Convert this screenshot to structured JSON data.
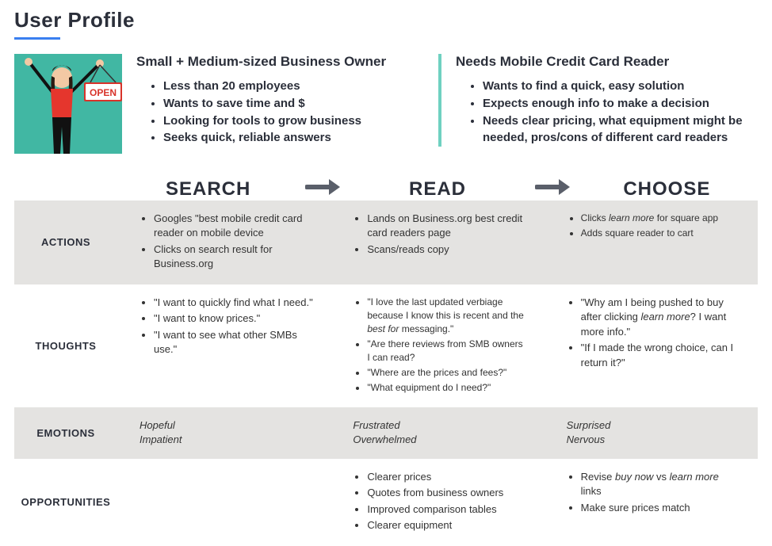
{
  "title": "User Profile",
  "colors": {
    "accent_blue": "#3a7ff0",
    "teal_bg": "#41b7a3",
    "teal_line": "#6fd1c1",
    "band_odd": "#e4e3e1",
    "band_even": "#ffffff",
    "text_dark": "#2b2f3a",
    "arrow": "#5a5f6a"
  },
  "profile": {
    "left": {
      "heading": "Small + Medium-sized Business Owner",
      "items": [
        "Less than 20 employees",
        "Wants to save time and $",
        "Looking for tools to grow business",
        "Seeks quick, reliable answers"
      ]
    },
    "right": {
      "heading": "Needs Mobile Credit Card Reader",
      "items": [
        "Wants to find a quick, easy solution",
        "Expects enough info to make a decision",
        "Needs clear pricing, what equipment might be needed, pros/cons of different card readers"
      ]
    },
    "illustration": {
      "sign_text": "OPEN",
      "sign_color": "#d8332a",
      "shirt_color": "#e5362d",
      "pants_color": "#111111",
      "skin_color": "#f3c9a4",
      "hair_color": "#2a1b12"
    }
  },
  "stages": {
    "search": "SEARCH",
    "read": "READ",
    "choose": "CHOOSE"
  },
  "rows": {
    "actions": {
      "label": "ACTIONS",
      "search": [
        "Googles \"best mobile credit card reader on mobile device",
        "Clicks on search result for Business.org"
      ],
      "read": [
        "Lands on Business.org best credit card readers page",
        "Scans/reads copy"
      ],
      "choose": [
        "Clicks <i>learn more</i> for square app",
        "Adds square reader to cart"
      ]
    },
    "thoughts": {
      "label": "THOUGHTS",
      "search": [
        "\"I want to quickly find what I need.\"",
        "\"I want to know prices.\"",
        "\"I want to see what other SMBs use.\""
      ],
      "read": [
        "\"I love the last updated verbiage because I know this is recent and the <i>best for</i> messaging.\"",
        "\"Are there reviews from SMB owners I can read?",
        "\"Where are the prices and fees?\"",
        "\"What equipment do I need?\""
      ],
      "choose": [
        "\"Why am I being pushed to buy after clicking <i>learn more</i>? I want more info.\"",
        "\"If I made the wrong choice, can I return it?\""
      ]
    },
    "emotions": {
      "label": "EMOTIONS",
      "search": [
        "Hopeful",
        "Impatient"
      ],
      "read": [
        "Frustrated",
        "Overwhelmed"
      ],
      "choose": [
        "Surprised",
        "Nervous"
      ]
    },
    "opportunities": {
      "label": "OPPORTUNITIES",
      "search": [],
      "read": [
        "Clearer prices",
        "Quotes from business owners",
        "Improved comparison tables",
        "Clearer equipment"
      ],
      "choose": [
        "Revise <i>buy now</i> vs <i>learn more</i> links",
        "Make sure prices match"
      ]
    }
  }
}
